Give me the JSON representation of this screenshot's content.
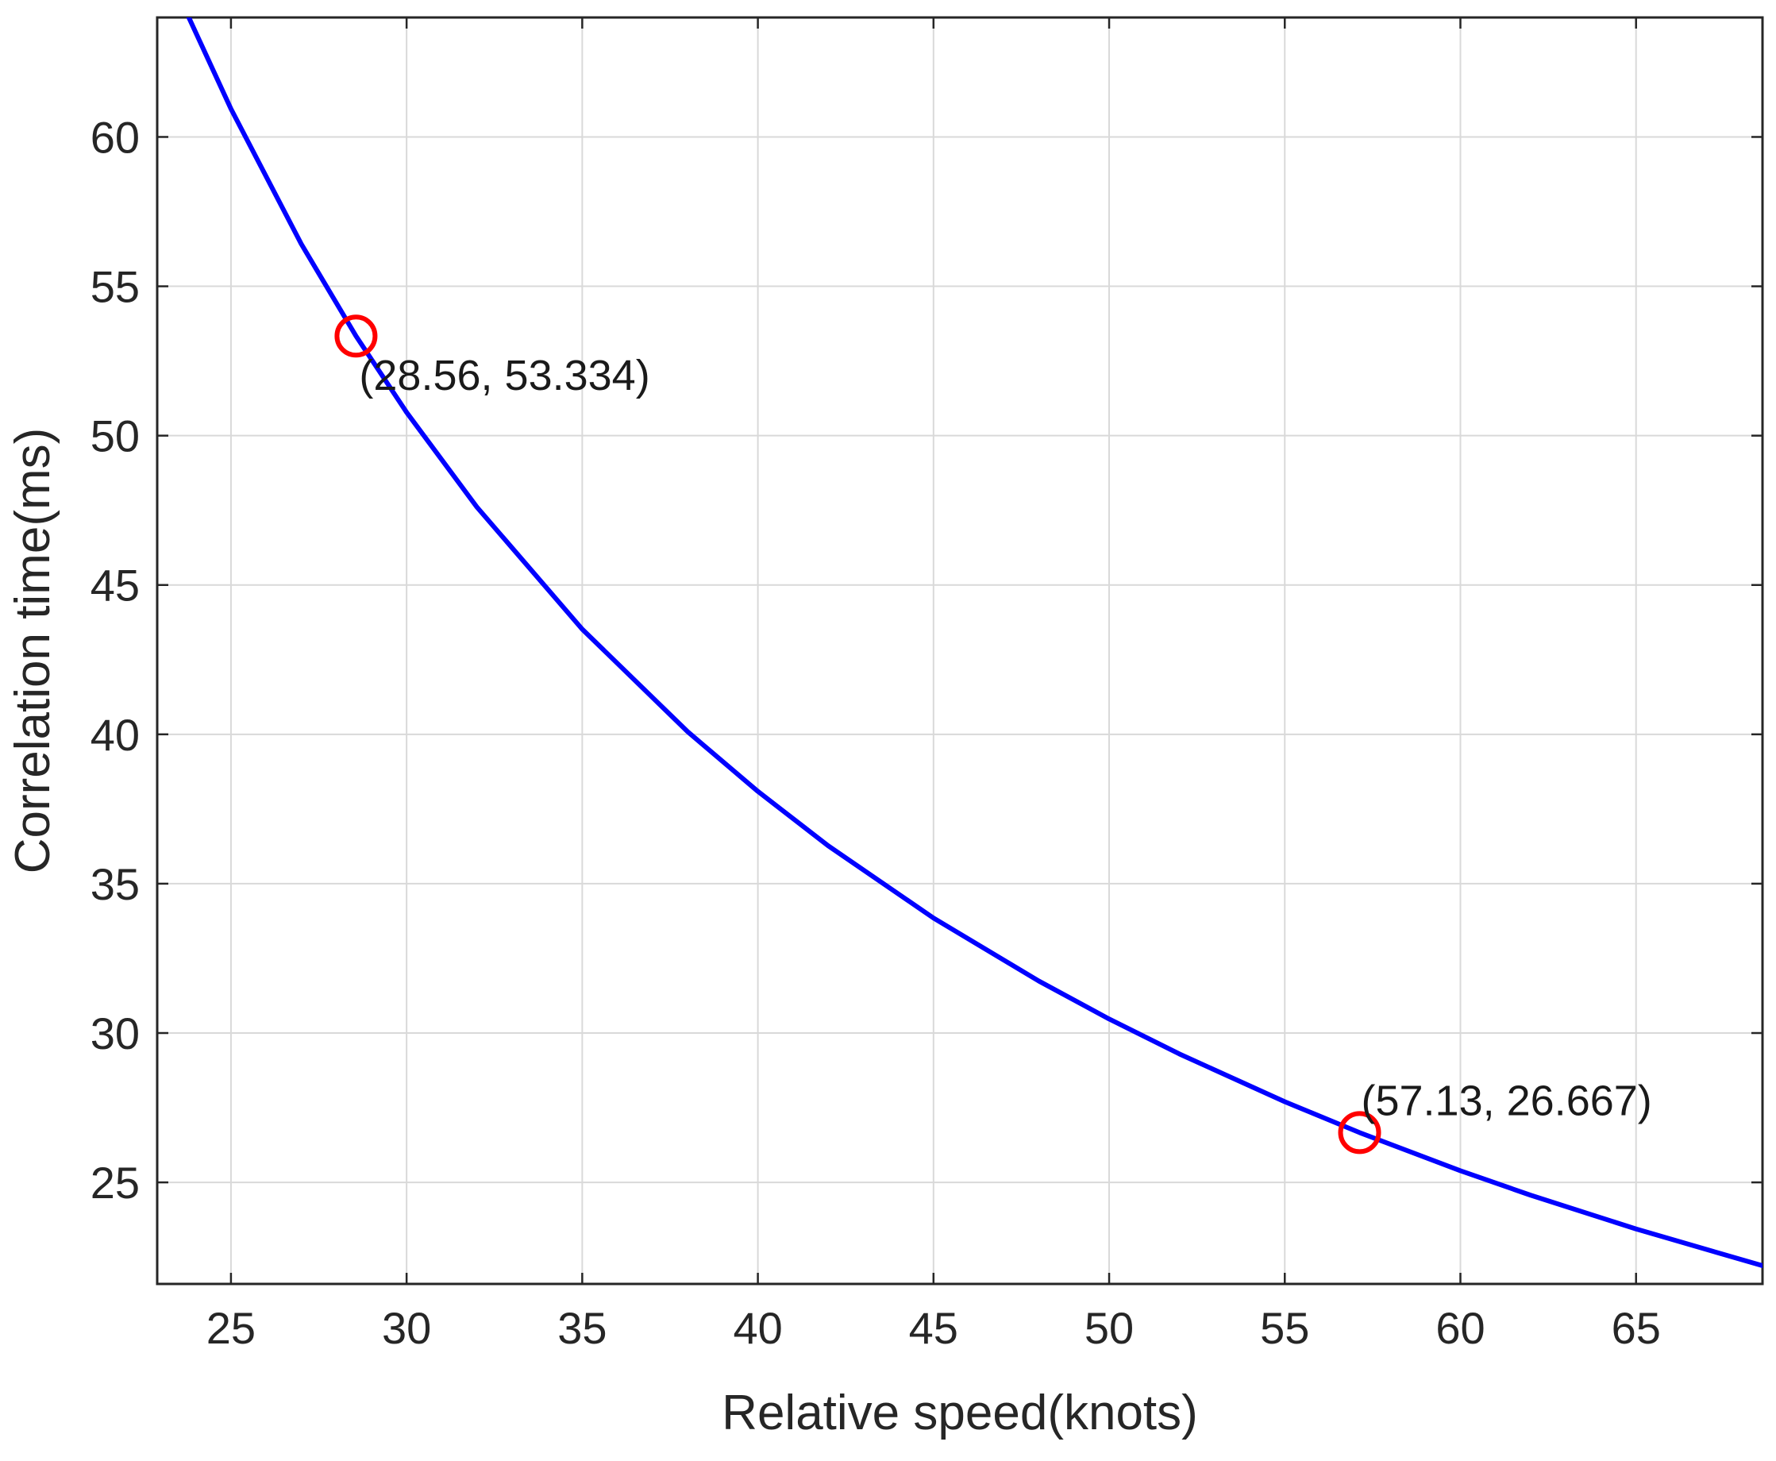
{
  "chart_data": {
    "type": "line",
    "title": "",
    "xlabel": "Relative speed(knots)",
    "ylabel": "Correlation time(ms)",
    "xlim": [
      22.9,
      68.6
    ],
    "ylim": [
      21.6,
      64.0
    ],
    "xticks": [
      25,
      30,
      35,
      40,
      45,
      50,
      55,
      60,
      65
    ],
    "yticks": [
      25,
      30,
      35,
      40,
      45,
      50,
      55,
      60
    ],
    "grid": true,
    "legend": "none",
    "series": [
      {
        "color": "#0000ff",
        "x": [
          23.8,
          25,
          27,
          28.56,
          30,
          32,
          35,
          38,
          40,
          42,
          45,
          48,
          50,
          52,
          55,
          57.13,
          60,
          62,
          65,
          68.6
        ],
        "y": [
          64.0,
          60.94,
          56.42,
          53.334,
          50.78,
          47.61,
          43.52,
          40.09,
          38.09,
          36.27,
          33.85,
          31.74,
          30.47,
          29.3,
          27.7,
          26.667,
          25.39,
          24.57,
          23.44,
          22.21
        ]
      }
    ],
    "markers": [
      {
        "x": 28.56,
        "y": 53.334,
        "label": "(28.56, 53.334)",
        "color": "#ff0000",
        "label_position": "below-right"
      },
      {
        "x": 57.13,
        "y": 26.667,
        "label": "(57.13, 26.667)",
        "color": "#ff0000",
        "label_position": "above-right"
      }
    ],
    "colors": {
      "line": "#0000ff",
      "marker": "#ff0000",
      "grid": "#d9d9d9",
      "axis": "#262626",
      "text": "#262626"
    }
  }
}
